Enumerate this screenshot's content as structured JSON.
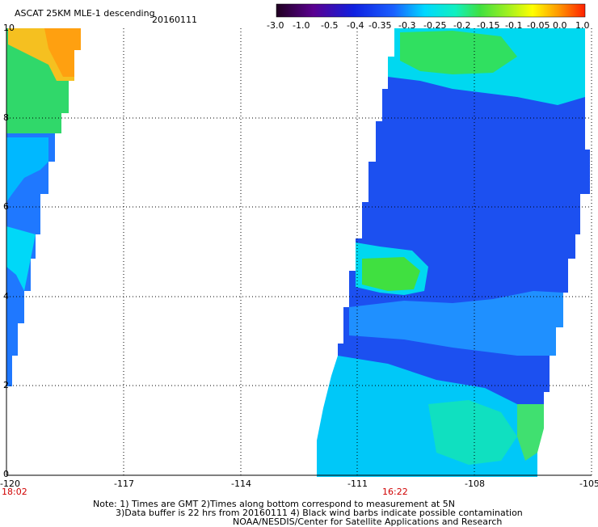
{
  "header": {
    "title": "ASCAT 25KM MLE-1 descending",
    "date": "20160111"
  },
  "colorbar": {
    "ticks": [
      "-3.0",
      "-1.0",
      "-0.5",
      "-0.4",
      "-0.35",
      "-0.3",
      "-0.25",
      "-0.2",
      "-0.15",
      "-0.1",
      "-0.05",
      "0.0",
      "1.0"
    ]
  },
  "axes": {
    "x_ticks": [
      "-120",
      "-117",
      "-114",
      "-111",
      "-108",
      "-105"
    ],
    "y_ticks": [
      "0",
      "2",
      "4",
      "6",
      "8",
      "10"
    ],
    "x_range": [
      -120,
      -105
    ],
    "y_range": [
      0,
      10
    ]
  },
  "times": {
    "left_pass": "18:02",
    "right_pass": "16:22"
  },
  "footer": {
    "line1": "Note: 1) Times are GMT 2)Times along bottom correspond to measurement at 5N",
    "line2": "3)Data buffer is 22 hrs from 20160111 4) Black wind barbs indicate possible contamination",
    "line3": "NOAA/NESDIS/Center for Satellite Applications and Research"
  }
}
